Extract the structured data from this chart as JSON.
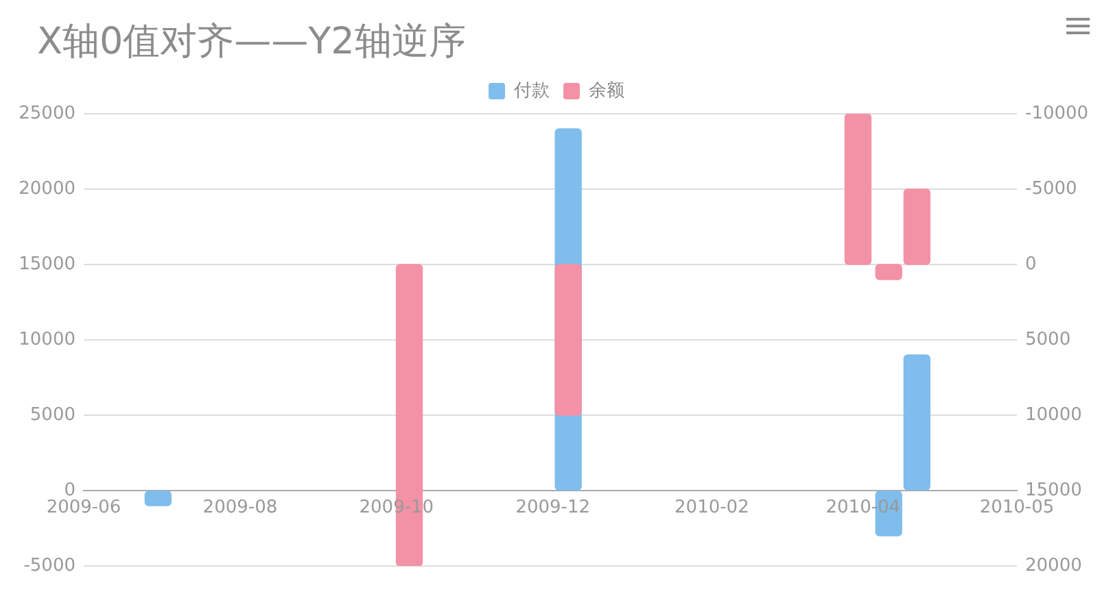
{
  "chart_data": {
    "type": "bar",
    "title": "X轴0值对齐——Y2轴逆序",
    "series": [
      {
        "name": "付款",
        "color": "#7fbdec",
        "x": [
          "2009-06-30",
          "2009-12-07",
          "2010-04-11",
          "2010-04-22"
        ],
        "values": [
          -1000,
          24000,
          -3000,
          9000
        ]
      },
      {
        "name": "余额",
        "color": "#f391a6",
        "axis": "y2",
        "x": [
          "2009-10-06",
          "2009-12-07",
          "2010-03-30",
          "2010-04-11",
          "2010-04-22"
        ],
        "values": [
          20000,
          10000,
          -10000,
          1000,
          -5000
        ]
      }
    ],
    "xlim": [
      "2009-06-01",
      "2010-05-31"
    ],
    "xticks": [
      {
        "value": "2009-06-01",
        "label": "2009-06"
      },
      {
        "value": "2009-08-01",
        "label": "2009-08"
      },
      {
        "value": "2009-10-01",
        "label": "2009-10"
      },
      {
        "value": "2009-12-01",
        "label": "2009-12"
      },
      {
        "value": "2010-02-01",
        "label": "2010-02"
      },
      {
        "value": "2010-04-01",
        "label": "2010-04"
      },
      {
        "value": "2010-05-31",
        "label": "2010-05"
      }
    ],
    "ylim": [
      -5000,
      25000
    ],
    "yticks": [
      -5000,
      0,
      5000,
      10000,
      15000,
      20000,
      25000
    ],
    "y2lim": [
      20000,
      -10000
    ],
    "y2ticks": [
      -10000,
      -5000,
      0,
      5000,
      10000,
      15000,
      20000
    ],
    "grid": "y",
    "legend": "top"
  }
}
